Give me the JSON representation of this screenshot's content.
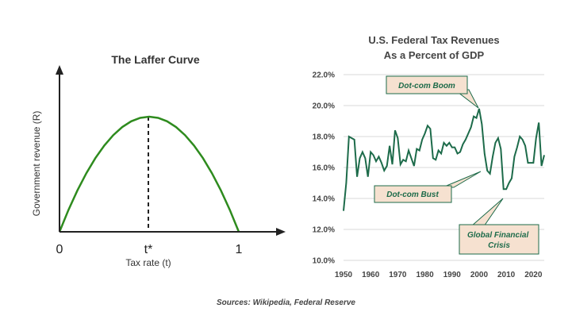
{
  "source": "Sources: Wikipedia, Federal Reserve",
  "colors": {
    "curve": "#2e8b1e",
    "line": "#1d6b4a",
    "axis": "#222222",
    "grid": "#d9d9d9",
    "callout_fill": "#f6e1d0",
    "callout_text": "#1d6b4a"
  },
  "chart_data": [
    {
      "type": "line",
      "title": "The Laffer Curve",
      "xlabel": "Tax rate (t)",
      "ylabel": "Government revenue (R)",
      "x_ticks": [
        "0",
        "t*",
        "1"
      ],
      "peak_x": 0.5,
      "x": [
        0,
        0.05,
        0.1,
        0.15,
        0.2,
        0.25,
        0.3,
        0.35,
        0.4,
        0.45,
        0.5,
        0.55,
        0.6,
        0.65,
        0.7,
        0.75,
        0.8,
        0.85,
        0.9,
        0.95,
        1
      ],
      "y": [
        0,
        0.19,
        0.36,
        0.51,
        0.64,
        0.75,
        0.84,
        0.91,
        0.96,
        0.99,
        1,
        0.99,
        0.96,
        0.91,
        0.84,
        0.75,
        0.64,
        0.51,
        0.36,
        0.19,
        0
      ]
    },
    {
      "type": "line",
      "title": "U.S. Federal Tax Revenues",
      "subtitle": "As a Percent of GDP",
      "xlim": [
        1950,
        2024
      ],
      "ylim": [
        10,
        22
      ],
      "x_ticks": [
        1950,
        1960,
        1970,
        1980,
        1990,
        2000,
        2010,
        2020
      ],
      "y_ticks": [
        "10.0%",
        "12.0%",
        "14.0%",
        "16.0%",
        "18.0%",
        "20.0%",
        "22.0%"
      ],
      "y_tick_values": [
        10,
        12,
        14,
        16,
        18,
        20,
        22
      ],
      "grid": "horizontal",
      "x": [
        1950,
        1951,
        1952,
        1953,
        1954,
        1955,
        1956,
        1957,
        1958,
        1959,
        1960,
        1961,
        1962,
        1963,
        1964,
        1965,
        1966,
        1967,
        1968,
        1969,
        1970,
        1971,
        1972,
        1973,
        1974,
        1975,
        1976,
        1977,
        1978,
        1979,
        1980,
        1981,
        1982,
        1983,
        1984,
        1985,
        1986,
        1987,
        1988,
        1989,
        1990,
        1991,
        1992,
        1993,
        1994,
        1995,
        1996,
        1997,
        1998,
        1999,
        2000,
        2001,
        2002,
        2003,
        2004,
        2005,
        2006,
        2007,
        2008,
        2009,
        2010,
        2011,
        2012,
        2013,
        2014,
        2015,
        2016,
        2017,
        2018,
        2019,
        2020,
        2021,
        2022,
        2023,
        2024
      ],
      "y": [
        13.2,
        15.0,
        18.0,
        17.9,
        17.8,
        15.4,
        16.6,
        17.0,
        16.6,
        15.4,
        17.0,
        16.8,
        16.4,
        16.7,
        16.3,
        15.8,
        16.1,
        17.4,
        16.2,
        18.4,
        17.9,
        16.2,
        16.5,
        16.4,
        17.1,
        16.6,
        16.1,
        17.2,
        17.1,
        17.8,
        18.2,
        18.7,
        18.5,
        16.6,
        16.5,
        17.1,
        16.9,
        17.6,
        17.4,
        17.6,
        17.3,
        17.3,
        16.9,
        17.0,
        17.5,
        17.8,
        18.2,
        18.6,
        19.3,
        19.2,
        19.8,
        18.8,
        16.9,
        15.8,
        15.6,
        16.7,
        17.6,
        17.9,
        17.2,
        14.6,
        14.6,
        15.0,
        15.3,
        16.7,
        17.3,
        18.0,
        17.8,
        17.4,
        16.3,
        16.3,
        16.3,
        17.9,
        18.9,
        16.1,
        16.8
      ],
      "annotations": [
        "Dot-com Boom",
        "Dot-com Bust",
        "Global Financial Crisis"
      ]
    }
  ]
}
